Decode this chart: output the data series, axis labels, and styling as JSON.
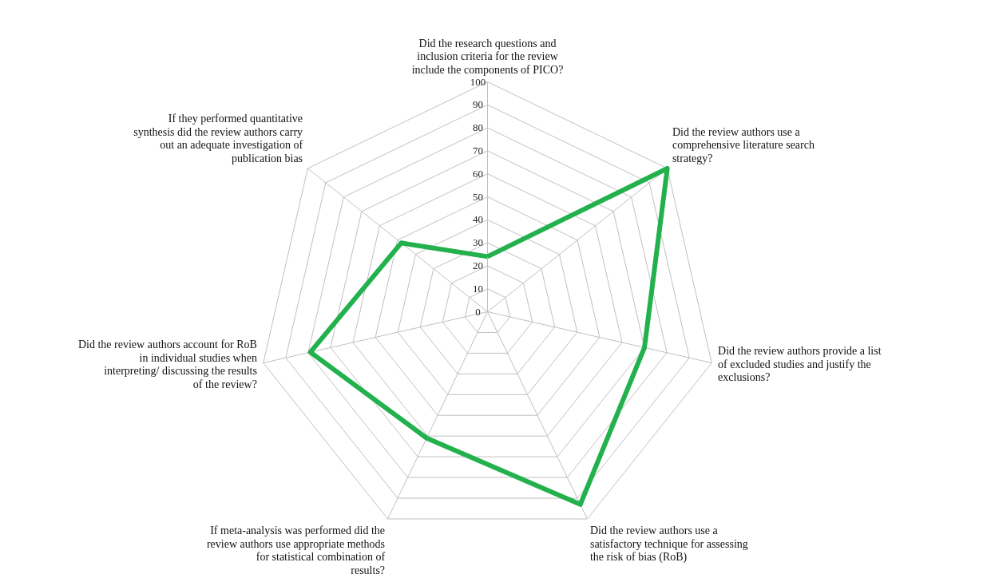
{
  "chart_data": {
    "type": "radar",
    "categories": [
      "Did the research questions and inclusion criteria for the review include the components of PICO?",
      "Did the review authors use a comprehensive literature search strategy?",
      "Did the review authors provide a list of excluded studies and justify the exclusions?",
      "Did the review authors use a satisfactory technique for assessing the risk of bias (RoB)",
      "If meta-analysis was performed did the review authors use appropriate methods for statistical combination of results?",
      "Did the review authors account for RoB in individual studies when interpreting/ discussing the results of the review?",
      "If they performed quantitative synthesis did the review authors carry out an adequate investigation of publication bias"
    ],
    "series": [
      {
        "color": "#22b14c",
        "values": [
          24,
          100,
          70,
          93,
          61,
          79,
          48
        ]
      }
    ],
    "ylim": [
      0,
      100
    ],
    "yticks": [
      0,
      10,
      20,
      30,
      40,
      50,
      60,
      70,
      80,
      90,
      100
    ],
    "grid": true,
    "marker": "none",
    "line_style": "solid"
  }
}
